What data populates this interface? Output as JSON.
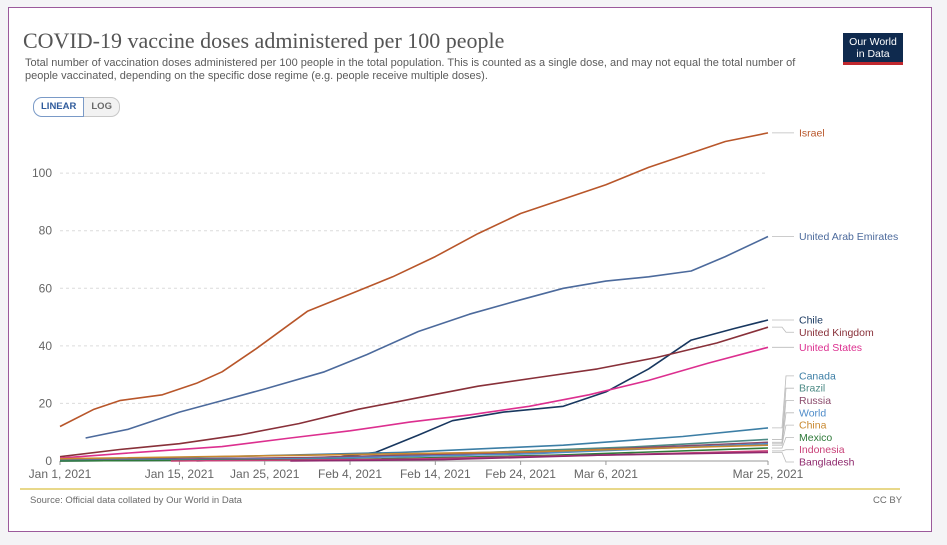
{
  "header": {
    "title": "COVID-19 vaccine doses administered per 100 people",
    "subtitle": "Total number of vaccination doses administered per 100 people in the total population. This is counted as a single dose, and may not equal the total number of people vaccinated, depending on the specific dose regime (e.g. people receive multiple doses).",
    "logo_line1": "Our World",
    "logo_line2": "in Data"
  },
  "controls": {
    "linear_label": "LINEAR",
    "log_label": "LOG"
  },
  "footer": {
    "source": "Source: Official data collated by Our World in Data",
    "license": "CC BY"
  },
  "colors": {
    "brand_navy": "#0f2a4e",
    "brand_red": "#c0282e",
    "frame": "#9b5a9b"
  },
  "chart_data": {
    "type": "line",
    "title": "COVID-19 vaccine doses administered per 100 people",
    "xlabel": "",
    "ylabel": "",
    "ylim": [
      0,
      115
    ],
    "xlim": [
      "2021-01-01",
      "2021-03-25"
    ],
    "grid": true,
    "legend": "inline labels at right end of lines",
    "yticks": [
      "0",
      "20",
      "40",
      "60",
      "80",
      "100"
    ],
    "xticks": [
      "Jan 1, 2021",
      "Jan 15, 2021",
      "Jan 25, 2021",
      "Feb 4, 2021",
      "Feb 14, 2021",
      "Feb 24, 2021",
      "Mar 6, 2021",
      "Mar 25, 2021"
    ],
    "xtick_dates": [
      "2021-01-01",
      "2021-01-15",
      "2021-01-25",
      "2021-02-04",
      "2021-02-14",
      "2021-02-24",
      "2021-03-06",
      "2021-03-25"
    ],
    "series": [
      {
        "name": "Israel",
        "color": "#b8562a",
        "points": [
          [
            "2021-01-01",
            12
          ],
          [
            "2021-01-05",
            18
          ],
          [
            "2021-01-08",
            21
          ],
          [
            "2021-01-13",
            23
          ],
          [
            "2021-01-17",
            27
          ],
          [
            "2021-01-20",
            31
          ],
          [
            "2021-01-24",
            39
          ],
          [
            "2021-01-30",
            52
          ],
          [
            "2021-02-04",
            58
          ],
          [
            "2021-02-09",
            64
          ],
          [
            "2021-02-14",
            71
          ],
          [
            "2021-02-19",
            79
          ],
          [
            "2021-02-24",
            86
          ],
          [
            "2021-03-01",
            91
          ],
          [
            "2021-03-06",
            96
          ],
          [
            "2021-03-11",
            102
          ],
          [
            "2021-03-16",
            107
          ],
          [
            "2021-03-20",
            111
          ],
          [
            "2021-03-25",
            114
          ]
        ]
      },
      {
        "name": "United Arab Emirates",
        "color": "#4c6a9c",
        "points": [
          [
            "2021-01-04",
            8
          ],
          [
            "2021-01-09",
            11
          ],
          [
            "2021-01-15",
            17
          ],
          [
            "2021-01-20",
            21
          ],
          [
            "2021-01-25",
            25
          ],
          [
            "2021-02-01",
            31
          ],
          [
            "2021-02-06",
            37
          ],
          [
            "2021-02-12",
            45
          ],
          [
            "2021-02-18",
            51
          ],
          [
            "2021-02-24",
            56
          ],
          [
            "2021-03-01",
            60
          ],
          [
            "2021-03-06",
            62.5
          ],
          [
            "2021-03-11",
            64
          ],
          [
            "2021-03-16",
            66
          ],
          [
            "2021-03-20",
            71
          ],
          [
            "2021-03-25",
            78
          ]
        ]
      },
      {
        "name": "Chile",
        "color": "#18375f",
        "points": [
          [
            "2021-01-01",
            0
          ],
          [
            "2021-01-25",
            0.5
          ],
          [
            "2021-02-03",
            1.5
          ],
          [
            "2021-02-07",
            3
          ],
          [
            "2021-02-12",
            9
          ],
          [
            "2021-02-16",
            14
          ],
          [
            "2021-02-22",
            17
          ],
          [
            "2021-03-01",
            19
          ],
          [
            "2021-03-06",
            24
          ],
          [
            "2021-03-11",
            32
          ],
          [
            "2021-03-16",
            42
          ],
          [
            "2021-03-21",
            46
          ],
          [
            "2021-03-25",
            49
          ]
        ]
      },
      {
        "name": "United Kingdom",
        "color": "#883039",
        "points": [
          [
            "2021-01-01",
            1.5
          ],
          [
            "2021-01-08",
            4
          ],
          [
            "2021-01-15",
            6
          ],
          [
            "2021-01-22",
            9
          ],
          [
            "2021-01-29",
            13
          ],
          [
            "2021-02-05",
            18
          ],
          [
            "2021-02-12",
            22
          ],
          [
            "2021-02-19",
            26
          ],
          [
            "2021-02-26",
            29
          ],
          [
            "2021-03-05",
            32
          ],
          [
            "2021-03-12",
            36
          ],
          [
            "2021-03-19",
            41
          ],
          [
            "2021-03-25",
            46.5
          ]
        ]
      },
      {
        "name": "United States",
        "color": "#dc2f8f",
        "points": [
          [
            "2021-01-01",
            1
          ],
          [
            "2021-01-10",
            3
          ],
          [
            "2021-01-20",
            5
          ],
          [
            "2021-01-28",
            8
          ],
          [
            "2021-02-04",
            10.5
          ],
          [
            "2021-02-11",
            13.5
          ],
          [
            "2021-02-18",
            16
          ],
          [
            "2021-02-25",
            19
          ],
          [
            "2021-03-04",
            23
          ],
          [
            "2021-03-11",
            28
          ],
          [
            "2021-03-18",
            34
          ],
          [
            "2021-03-25",
            39.5
          ]
        ]
      },
      {
        "name": "Canada",
        "color": "#3c7ea5",
        "points": [
          [
            "2021-01-01",
            0.3
          ],
          [
            "2021-01-20",
            1.5
          ],
          [
            "2021-02-10",
            3
          ],
          [
            "2021-03-01",
            5.5
          ],
          [
            "2021-03-15",
            8.5
          ],
          [
            "2021-03-25",
            11.5
          ]
        ]
      },
      {
        "name": "Brazil",
        "color": "#4c8a85",
        "points": [
          [
            "2021-01-17",
            0
          ],
          [
            "2021-02-01",
            1.2
          ],
          [
            "2021-02-20",
            3
          ],
          [
            "2021-03-10",
            5
          ],
          [
            "2021-03-25",
            7.5
          ]
        ]
      },
      {
        "name": "Russia",
        "color": "#8a4a6b",
        "points": [
          [
            "2021-01-01",
            0.2
          ],
          [
            "2021-01-30",
            1.2
          ],
          [
            "2021-02-25",
            3
          ],
          [
            "2021-03-25",
            6.5
          ]
        ]
      },
      {
        "name": "World",
        "color": "#4f8cc9",
        "points": [
          [
            "2021-01-01",
            0.1
          ],
          [
            "2021-01-30",
            0.8
          ],
          [
            "2021-02-25",
            2.5
          ],
          [
            "2021-03-25",
            6
          ]
        ]
      },
      {
        "name": "China",
        "color": "#c8882f",
        "points": [
          [
            "2021-01-01",
            0.8
          ],
          [
            "2021-01-30",
            2
          ],
          [
            "2021-02-25",
            3.2
          ],
          [
            "2021-03-25",
            5.5
          ]
        ]
      },
      {
        "name": "Mexico",
        "color": "#2f7a3a",
        "points": [
          [
            "2021-01-01",
            0
          ],
          [
            "2021-02-05",
            0.6
          ],
          [
            "2021-02-28",
            2
          ],
          [
            "2021-03-25",
            4.5
          ]
        ]
      },
      {
        "name": "Indonesia",
        "color": "#c94178",
        "points": [
          [
            "2021-01-14",
            0
          ],
          [
            "2021-02-10",
            0.6
          ],
          [
            "2021-03-05",
            2
          ],
          [
            "2021-03-25",
            3.5
          ]
        ]
      },
      {
        "name": "Bangladesh",
        "color": "#8f2a6e",
        "points": [
          [
            "2021-01-28",
            0
          ],
          [
            "2021-02-15",
            0.5
          ],
          [
            "2021-03-05",
            2
          ],
          [
            "2021-03-25",
            3
          ]
        ]
      }
    ]
  }
}
